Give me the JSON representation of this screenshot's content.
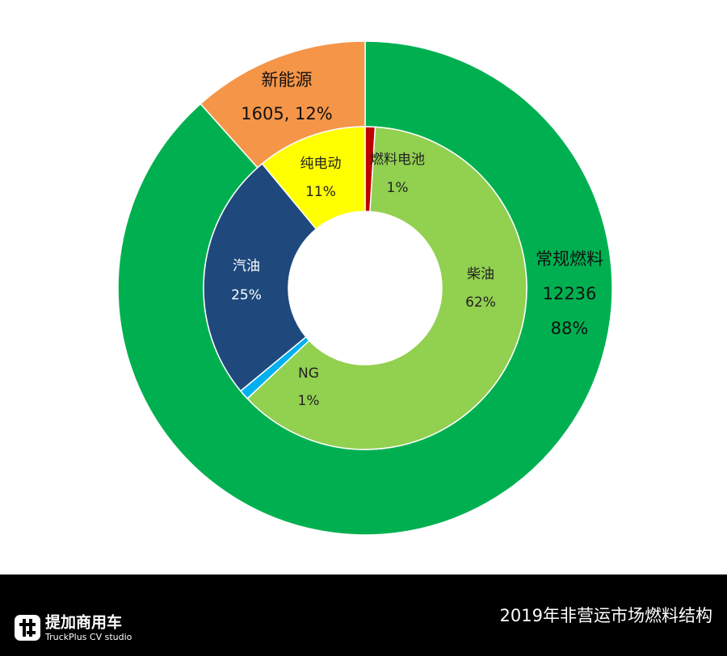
{
  "chart_data": {
    "type": "pie",
    "title": "2019年非营运市场燃料结构",
    "outer": {
      "categories": [
        "常规燃料",
        "新能源"
      ],
      "values": [
        12236,
        1605
      ],
      "value_labels": [
        "12236",
        "1605, 12%"
      ],
      "percent_labels": [
        "88%",
        null
      ],
      "colors": [
        "#00b050",
        "#f59548"
      ]
    },
    "inner": {
      "categories": [
        "燃料电池",
        "柴油",
        "NG",
        "汽油",
        "纯电动"
      ],
      "values": [
        1,
        62,
        1,
        25,
        11
      ],
      "value_labels": [
        "1%",
        "62%",
        "1%",
        "25%",
        "11%"
      ],
      "colors": [
        "#c00000",
        "#92d050",
        "#00b0f0",
        "#1f497d",
        "#ffff00"
      ]
    }
  },
  "footer": {
    "brand": "提加商用车",
    "tagline": "TruckPlus CV studio"
  }
}
